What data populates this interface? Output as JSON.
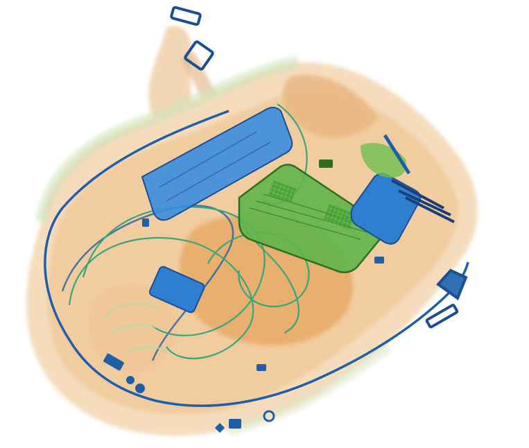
{
  "image": {
    "kind": "x-ray baggage scan",
    "description_visible_text": "",
    "palette": {
      "background": "#ffffff",
      "organic": "#e9b57f",
      "organic_dark": "#d58a45",
      "organic_light": "#f4d9b6",
      "mixed": "#6fbf4f",
      "mixed_dark": "#3b8f2a",
      "inorganic": "#2d7fd0",
      "inorganic_dark": "#1a4f94",
      "cable": "#2aa37a"
    },
    "objects": [
      {
        "name": "bag-body",
        "material": "organic"
      },
      {
        "name": "bag-handle",
        "material": "organic"
      },
      {
        "name": "strap-buckle",
        "material": "inorganic"
      },
      {
        "name": "blue-case",
        "material": "inorganic"
      },
      {
        "name": "laptop-board",
        "material": "mixed"
      },
      {
        "name": "power-bank",
        "material": "inorganic"
      },
      {
        "name": "phone",
        "material": "inorganic"
      },
      {
        "name": "connectors",
        "material": "inorganic"
      },
      {
        "name": "zipper-track",
        "material": "inorganic"
      },
      {
        "name": "cables",
        "material": "mixed"
      }
    ]
  }
}
